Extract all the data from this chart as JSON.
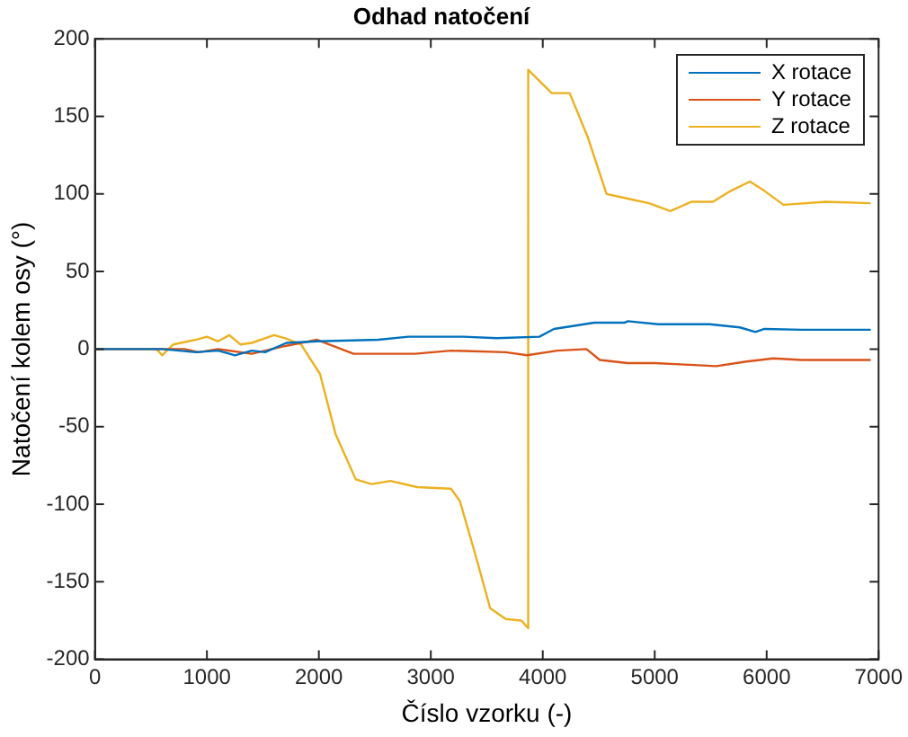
{
  "chart_data": {
    "type": "line",
    "title": "Odhad natočení",
    "xlabel": "Číslo vzorku (-)",
    "ylabel": "Natočení kolem osy (°)",
    "xlim": [
      0,
      7000
    ],
    "xticks": [
      0,
      1000,
      2000,
      3000,
      4000,
      5000,
      6000,
      7000
    ],
    "ylim": [
      -200,
      200
    ],
    "yticks": [
      -200,
      -150,
      -100,
      -50,
      0,
      50,
      100,
      150,
      200
    ],
    "grid": false,
    "legend": "top right",
    "line_style": "solid",
    "marker": "none",
    "series": [
      {
        "name": "X rotace",
        "color": "#0072bd",
        "x": [
          0,
          600,
          900,
          1100,
          1250,
          1400,
          1520,
          1710,
          1985,
          2530,
          2800,
          3290,
          3590,
          3970,
          4100,
          4460,
          4730,
          4760,
          5030,
          5490,
          5760,
          5900,
          5980,
          6310,
          6930
        ],
        "values": [
          0,
          0,
          -2,
          -1,
          -4,
          -1,
          -2,
          4,
          5,
          6,
          8,
          8,
          7,
          8,
          13,
          17,
          17,
          18,
          16,
          16,
          14,
          11,
          13,
          12.5,
          12.5
        ]
      },
      {
        "name": "Y rotace",
        "color": "#d95319",
        "x": [
          0,
          800,
          925,
          1100,
          1400,
          1700,
          1985,
          2310,
          2860,
          3180,
          3670,
          3860,
          4130,
          4390,
          4510,
          4760,
          5000,
          5270,
          5550,
          5820,
          6060,
          6310,
          6930
        ],
        "values": [
          0,
          0,
          -2,
          0,
          -3,
          2,
          6,
          -3,
          -3,
          -1,
          -2,
          -4,
          -1,
          0,
          -7,
          -9,
          -9,
          -10,
          -11,
          -8,
          -6,
          -7,
          -7
        ]
      },
      {
        "name": "Z rotace",
        "color": "#edb120",
        "x": [
          0,
          550,
          600,
          700,
          900,
          1000,
          1100,
          1200,
          1300,
          1400,
          1600,
          1700,
          1840,
          2010,
          2150,
          2330,
          2470,
          2640,
          2880,
          3180,
          3260,
          3400,
          3530,
          3670,
          3810,
          3870,
          3870,
          4080,
          4240,
          4400,
          4570,
          4760,
          4950,
          5140,
          5330,
          5520,
          5680,
          5850,
          5980,
          6150,
          6530,
          6930
        ],
        "values": [
          0,
          0,
          -4,
          3,
          6,
          8,
          5,
          9,
          3,
          4,
          9,
          7,
          3,
          -16,
          -55,
          -84,
          -87,
          -85,
          -89,
          -90,
          -98,
          -133,
          -167,
          -174,
          -175,
          -180,
          180,
          165,
          165,
          137,
          100,
          97,
          94,
          89,
          95,
          95,
          102,
          108,
          102,
          93,
          95,
          94
        ]
      }
    ]
  }
}
